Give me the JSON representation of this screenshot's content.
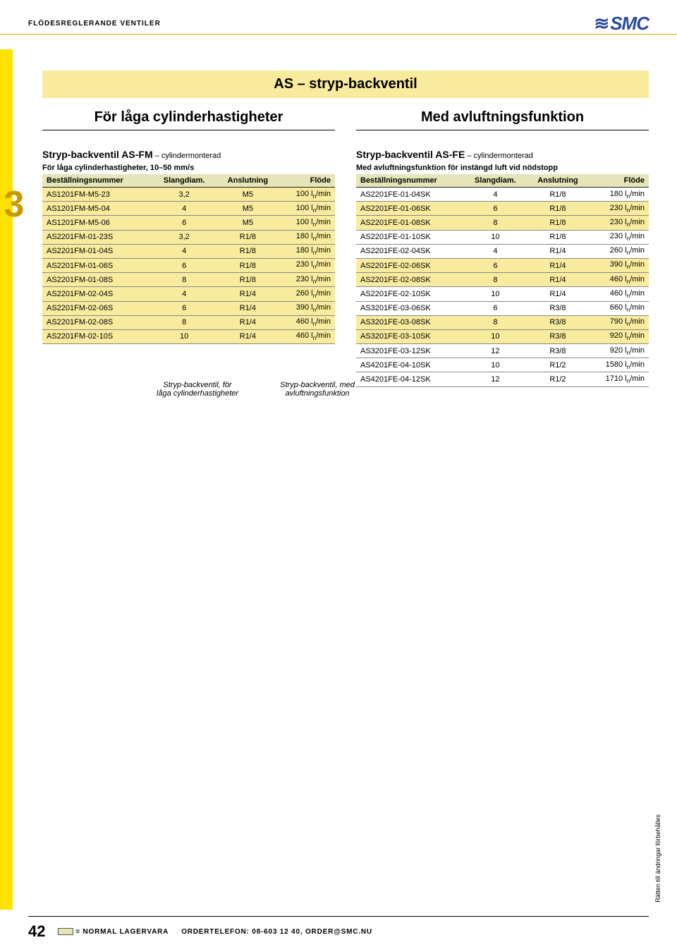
{
  "header": {
    "category": "FLÖDESREGLERANDE VENTILER",
    "logo": "SMC"
  },
  "banner": "AS – stryp-backventil",
  "chapter": "3",
  "left": {
    "heading": "För låga cylinderhastigheter",
    "title_bold": "Stryp-backventil AS-FM",
    "title_rest": " – cylindermonterad",
    "subtitle": "För låga cylinderhastigheter, 10–50 mm/s",
    "cols": [
      "Beställningsnummer",
      "Slangdiam.",
      "Anslutning",
      "Flöde"
    ],
    "flow_unit_prefix": " l",
    "flow_unit_sub": "n",
    "flow_unit_suffix": "/min",
    "rows": [
      {
        "hl": true,
        "c": [
          "AS1201FM-M5-23",
          "3,2",
          "M5",
          "100"
        ]
      },
      {
        "hl": true,
        "c": [
          "AS1201FM-M5-04",
          "4",
          "M5",
          "100"
        ]
      },
      {
        "hl": true,
        "c": [
          "AS1201FM-M5-06",
          "6",
          "M5",
          "100"
        ]
      },
      {
        "hl": true,
        "c": [
          "AS2201FM-01-23S",
          "3,2",
          "R1/8",
          "180"
        ]
      },
      {
        "hl": true,
        "c": [
          "AS2201FM-01-04S",
          "4",
          "R1/8",
          "180"
        ]
      },
      {
        "hl": true,
        "c": [
          "AS2201FM-01-06S",
          "6",
          "R1/8",
          "230"
        ]
      },
      {
        "hl": true,
        "c": [
          "AS2201FM-01-08S",
          "8",
          "R1/8",
          "230"
        ]
      },
      {
        "hl": true,
        "c": [
          "AS2201FM-02-04S",
          "4",
          "R1/4",
          "260"
        ]
      },
      {
        "hl": true,
        "c": [
          "AS2201FM-02-06S",
          "6",
          "R1/4",
          "390"
        ]
      },
      {
        "hl": true,
        "c": [
          "AS2201FM-02-08S",
          "8",
          "R1/4",
          "460"
        ]
      },
      {
        "hl": true,
        "c": [
          "AS2201FM-02-10S",
          "10",
          "R1/4",
          "460"
        ]
      }
    ]
  },
  "right": {
    "heading": "Med avluftningsfunktion",
    "title_bold": "Stryp-backventil AS-FE",
    "title_rest": " – cylindermonterad",
    "subtitle": "Med avluftningsfunktion för instängd luft vid nödstopp",
    "cols": [
      "Beställningsnummer",
      "Slangdiam.",
      "Anslutning",
      "Flöde"
    ],
    "flow_unit_prefix": " l",
    "flow_unit_sub": "n",
    "flow_unit_suffix": "/min",
    "rows": [
      {
        "hl": false,
        "c": [
          "AS2201FE-01-04SK",
          "4",
          "R1/8",
          "180"
        ]
      },
      {
        "hl": true,
        "c": [
          "AS2201FE-01-06SK",
          "6",
          "R1/8",
          "230"
        ]
      },
      {
        "hl": true,
        "c": [
          "AS2201FE-01-08SK",
          "8",
          "R1/8",
          "230"
        ]
      },
      {
        "hl": false,
        "c": [
          "AS2201FE-01-10SK",
          "10",
          "R1/8",
          "230"
        ]
      },
      {
        "hl": false,
        "c": [
          "AS2201FE-02-04SK",
          "4",
          "R1/4",
          "260"
        ]
      },
      {
        "hl": true,
        "c": [
          "AS2201FE-02-06SK",
          "6",
          "R1/4",
          "390"
        ]
      },
      {
        "hl": true,
        "c": [
          "AS2201FE-02-08SK",
          "8",
          "R1/4",
          "460"
        ]
      },
      {
        "hl": false,
        "c": [
          "AS2201FE-02-10SK",
          "10",
          "R1/4",
          "460"
        ]
      },
      {
        "hl": false,
        "c": [
          "AS3201FE-03-06SK",
          "6",
          "R3/8",
          "660"
        ]
      },
      {
        "hl": true,
        "c": [
          "AS3201FE-03-08SK",
          "8",
          "R3/8",
          "790"
        ]
      },
      {
        "hl": true,
        "c": [
          "AS3201FE-03-10SK",
          "10",
          "R3/8",
          "920"
        ]
      },
      {
        "hl": false,
        "c": [
          "AS3201FE-03-12SK",
          "12",
          "R3/8",
          "920"
        ]
      },
      {
        "hl": false,
        "c": [
          "AS4201FE-04-10SK",
          "10",
          "R1/2",
          "1580"
        ]
      },
      {
        "hl": false,
        "c": [
          "AS4201FE-04-12SK",
          "12",
          "R1/2",
          "1710"
        ]
      }
    ]
  },
  "captions": {
    "left": "Stryp-backventil, för låga cylinder­hastigheter",
    "right": "Stryp-backventil, med avluftnings­funktion"
  },
  "vert": "Rätten till ändringar förbehålles",
  "footer": {
    "page": "42",
    "stock_label": " = NORMAL LAGERVARA",
    "order": "ORDERTELEFON: 08-603 12 40, ORDER@SMC.NU"
  },
  "colors": {
    "hl": "#f8eb9e",
    "thead": "#e5e5b8",
    "side": "#ffe100",
    "chapter": "#c89a00",
    "logo": "#2a4a9a"
  }
}
